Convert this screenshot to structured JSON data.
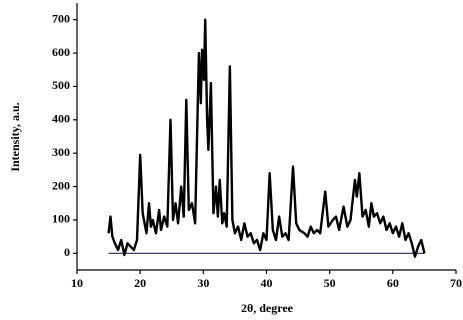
{
  "chart_data": {
    "type": "line",
    "xlabel": "2θ, degree",
    "ylabel": "Intensity, a.u.",
    "xlim": [
      10,
      70
    ],
    "ylim": [
      -50,
      750
    ],
    "xticks": [
      10,
      20,
      30,
      40,
      50,
      60,
      70
    ],
    "yticks": [
      0,
      100,
      200,
      300,
      400,
      500,
      600,
      700
    ],
    "x": [
      15,
      15.3,
      15.6,
      16,
      16.5,
      17,
      17.5,
      18,
      18.5,
      19,
      19.5,
      20,
      20.4,
      21,
      21.4,
      21.7,
      22,
      22.5,
      23,
      23.3,
      23.8,
      24.3,
      24.8,
      25.2,
      25.6,
      26,
      26.5,
      26.9,
      27.3,
      27.7,
      28.2,
      28.7,
      29.3,
      29.6,
      29.8,
      30.1,
      30.3,
      30.6,
      30.8,
      31.2,
      31.6,
      32,
      32.3,
      32.6,
      33,
      33.3,
      33.7,
      34.2,
      34.6,
      35,
      35.5,
      36,
      36.5,
      37,
      37.5,
      38,
      38.5,
      39,
      39.5,
      40,
      40.5,
      41,
      41.5,
      42,
      42.5,
      43,
      43.5,
      44.2,
      44.7,
      45.2,
      46,
      46.5,
      47,
      47.5,
      48,
      48.5,
      49.3,
      49.8,
      50.5,
      51,
      51.5,
      52.2,
      52.8,
      53.3,
      54,
      54.3,
      54.7,
      55.2,
      55.7,
      56.2,
      56.6,
      57,
      57.5,
      58,
      58.5,
      59,
      59.5,
      60,
      60.5,
      61,
      61.5,
      62,
      62.5,
      63,
      63.5,
      64,
      64.5,
      65
    ],
    "series": [
      {
        "color": "#000000",
        "values": [
          60,
          110,
          50,
          30,
          10,
          40,
          -5,
          30,
          20,
          10,
          40,
          295,
          120,
          60,
          150,
          80,
          100,
          60,
          130,
          70,
          110,
          80,
          400,
          100,
          150,
          90,
          200,
          110,
          460,
          130,
          150,
          90,
          600,
          450,
          610,
          520,
          700,
          400,
          310,
          510,
          120,
          200,
          110,
          220,
          90,
          120,
          80,
          560,
          100,
          60,
          80,
          40,
          90,
          50,
          60,
          30,
          40,
          10,
          60,
          40,
          240,
          70,
          40,
          110,
          50,
          60,
          40,
          260,
          90,
          70,
          60,
          50,
          80,
          60,
          70,
          60,
          185,
          80,
          100,
          110,
          70,
          140,
          80,
          100,
          220,
          170,
          240,
          110,
          130,
          80,
          150,
          110,
          120,
          90,
          110,
          70,
          90,
          60,
          80,
          50,
          90,
          40,
          60,
          30,
          -10,
          20,
          40,
          0
        ]
      }
    ],
    "hlines": [
      {
        "y": 0,
        "x": [
          15,
          65
        ],
        "color": "#1a1aa6"
      }
    ]
  }
}
